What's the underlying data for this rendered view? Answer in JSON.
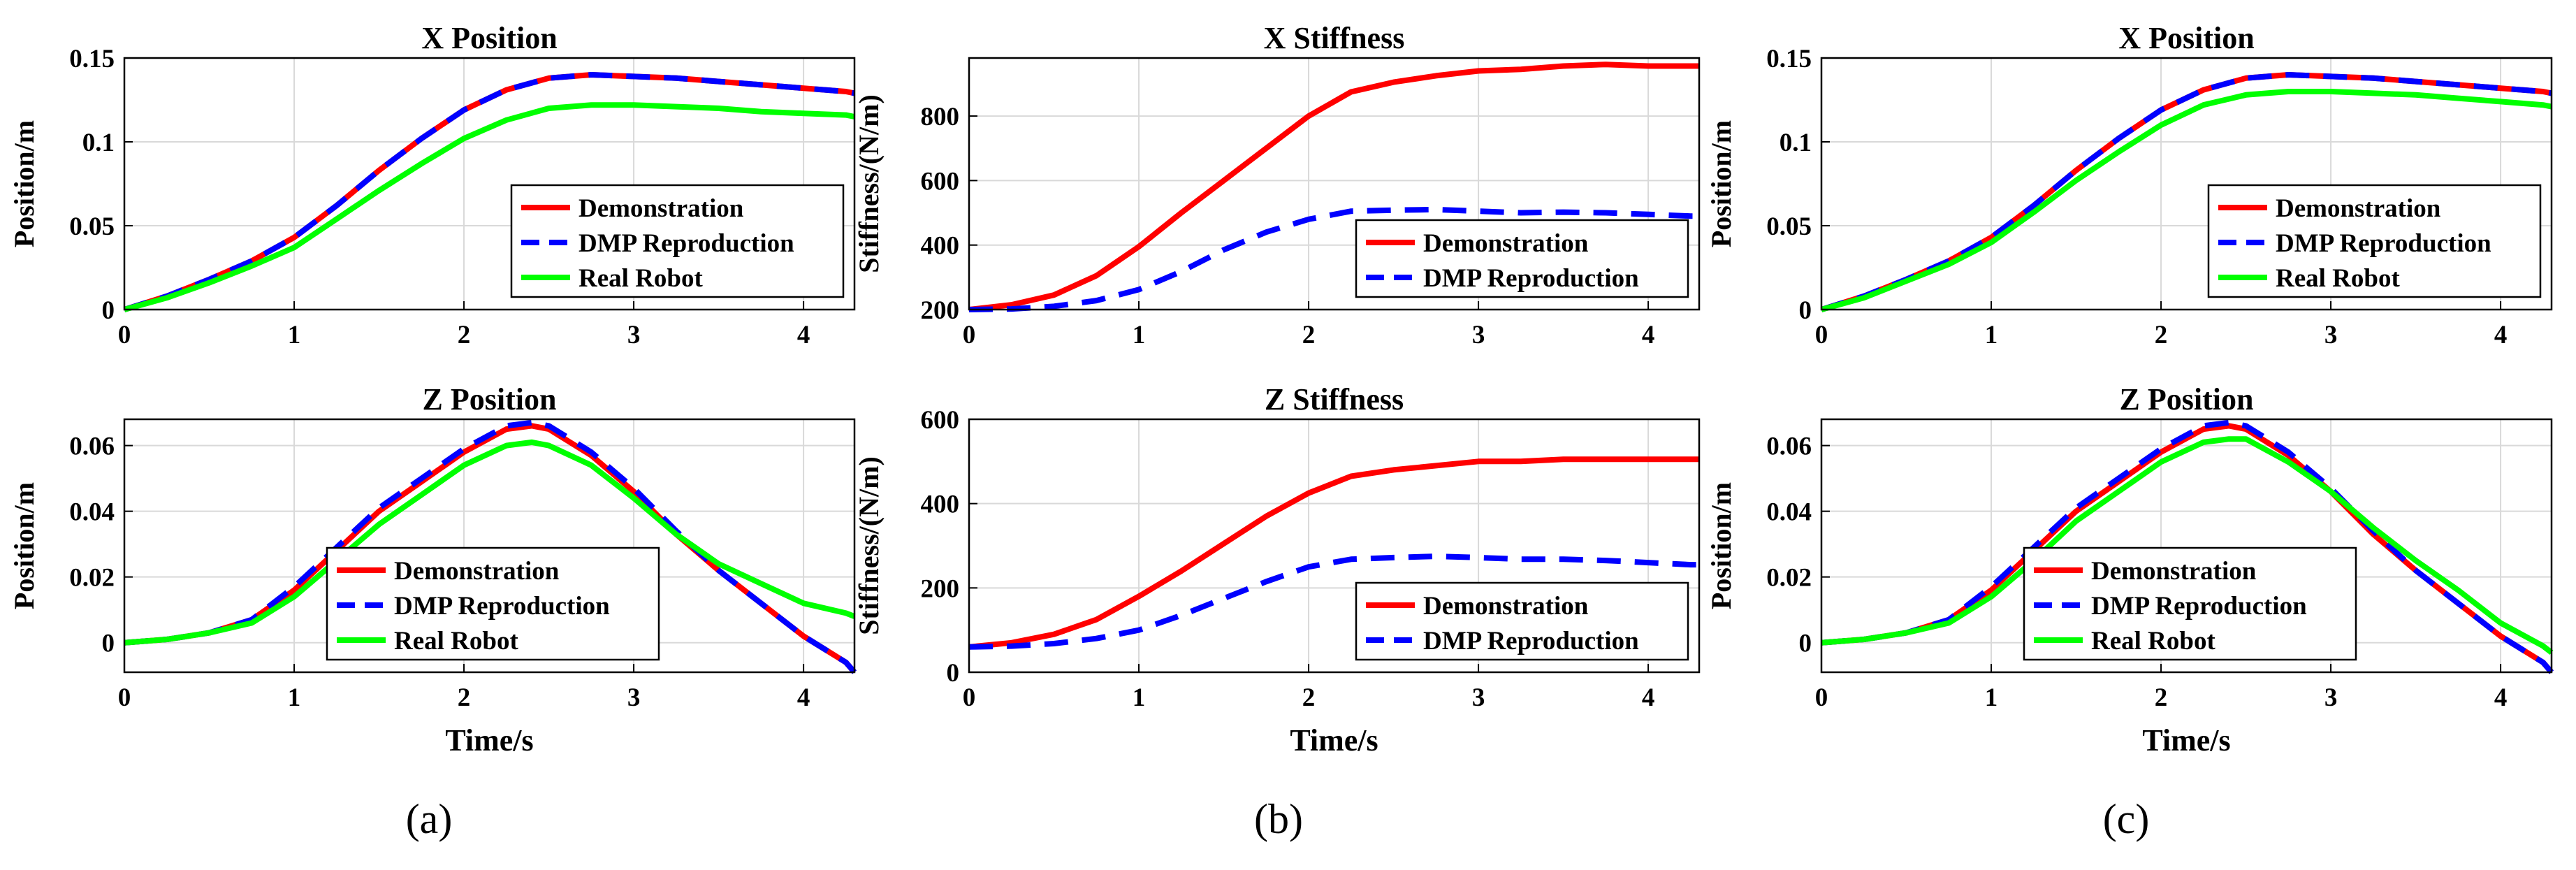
{
  "colors": {
    "Demonstration": "#ff0000",
    "DMP Reproduction": "#0000ff",
    "Real Robot": "#00ff00",
    "grid": "#d9d9d9"
  },
  "captions": [
    "(a)",
    "(b)",
    "(c)"
  ],
  "chart_data": [
    {
      "type": "line",
      "title": "X Position",
      "xlabel": "",
      "ylabel": "Position/m",
      "xlim": [
        0,
        4.3
      ],
      "ylim": [
        0,
        0.15
      ],
      "xticks": [
        "0",
        "1",
        "2",
        "3",
        "4"
      ],
      "yticks": [
        "0",
        "0.05",
        "0.1",
        "0.15"
      ],
      "ytick_values": [
        0,
        0.05,
        0.1,
        0.15
      ],
      "grid": true,
      "legend": "bottom-right",
      "x": [
        0,
        0.25,
        0.5,
        0.75,
        1,
        1.25,
        1.5,
        1.75,
        2,
        2.25,
        2.5,
        2.75,
        3,
        3.25,
        3.5,
        3.75,
        4,
        4.25,
        4.3
      ],
      "series": [
        {
          "name": "Demonstration",
          "style": "solid",
          "values": [
            0,
            0.008,
            0.018,
            0.029,
            0.043,
            0.062,
            0.083,
            0.102,
            0.119,
            0.131,
            0.138,
            0.14,
            0.139,
            0.138,
            0.136,
            0.134,
            0.132,
            0.13,
            0.129
          ]
        },
        {
          "name": "DMP Reproduction",
          "style": "dashed",
          "values": [
            0,
            0.008,
            0.018,
            0.029,
            0.043,
            0.062,
            0.083,
            0.102,
            0.119,
            0.131,
            0.138,
            0.14,
            0.139,
            0.138,
            0.136,
            0.134,
            0.132,
            0.13,
            0.129
          ]
        },
        {
          "name": "Real Robot",
          "style": "solid",
          "values": [
            0,
            0.007,
            0.016,
            0.026,
            0.037,
            0.054,
            0.071,
            0.087,
            0.102,
            0.113,
            0.12,
            0.122,
            0.122,
            0.121,
            0.12,
            0.118,
            0.117,
            0.116,
            0.115
          ]
        }
      ]
    },
    {
      "type": "line",
      "title": "X Stiffness",
      "xlabel": "",
      "ylabel": "Stiffness/(N/m)",
      "xlim": [
        0,
        4.3
      ],
      "ylim": [
        200,
        980
      ],
      "xticks": [
        "0",
        "1",
        "2",
        "3",
        "4"
      ],
      "yticks": [
        "200",
        "400",
        "600",
        "800"
      ],
      "ytick_values": [
        200,
        400,
        600,
        800
      ],
      "grid": true,
      "legend": "bottom-right",
      "x": [
        0,
        0.25,
        0.5,
        0.75,
        1,
        1.25,
        1.5,
        1.75,
        2,
        2.25,
        2.5,
        2.75,
        3,
        3.25,
        3.5,
        3.75,
        4,
        4.25,
        4.3
      ],
      "series": [
        {
          "name": "Demonstration",
          "style": "solid",
          "values": [
            200,
            215,
            245,
            305,
            395,
            500,
            600,
            700,
            800,
            875,
            905,
            925,
            940,
            945,
            955,
            960,
            955,
            955,
            955
          ]
        },
        {
          "name": "DMP Reproduction",
          "style": "dashed",
          "values": [
            200,
            202,
            210,
            228,
            262,
            318,
            385,
            440,
            480,
            505,
            508,
            510,
            505,
            500,
            502,
            500,
            495,
            490,
            490
          ]
        }
      ]
    },
    {
      "type": "line",
      "title": "X Position",
      "xlabel": "",
      "ylabel": "Position/m",
      "xlim": [
        0,
        4.3
      ],
      "ylim": [
        0,
        0.15
      ],
      "xticks": [
        "0",
        "1",
        "2",
        "3",
        "4"
      ],
      "yticks": [
        "0",
        "0.05",
        "0.1",
        "0.15"
      ],
      "ytick_values": [
        0,
        0.05,
        0.1,
        0.15
      ],
      "grid": true,
      "legend": "bottom-right",
      "x": [
        0,
        0.25,
        0.5,
        0.75,
        1,
        1.25,
        1.5,
        1.75,
        2,
        2.25,
        2.5,
        2.75,
        3,
        3.25,
        3.5,
        3.75,
        4,
        4.25,
        4.3
      ],
      "series": [
        {
          "name": "Demonstration",
          "style": "solid",
          "values": [
            0,
            0.008,
            0.018,
            0.029,
            0.043,
            0.062,
            0.083,
            0.102,
            0.119,
            0.131,
            0.138,
            0.14,
            0.139,
            0.138,
            0.136,
            0.134,
            0.132,
            0.13,
            0.129
          ]
        },
        {
          "name": "DMP Reproduction",
          "style": "dashed",
          "values": [
            0,
            0.008,
            0.018,
            0.029,
            0.043,
            0.062,
            0.083,
            0.102,
            0.119,
            0.131,
            0.138,
            0.14,
            0.139,
            0.138,
            0.136,
            0.134,
            0.132,
            0.13,
            0.129
          ]
        },
        {
          "name": "Real Robot",
          "style": "solid",
          "values": [
            0,
            0.007,
            0.017,
            0.027,
            0.04,
            0.058,
            0.077,
            0.094,
            0.11,
            0.122,
            0.128,
            0.13,
            0.13,
            0.129,
            0.128,
            0.126,
            0.124,
            0.122,
            0.121
          ]
        }
      ]
    },
    {
      "type": "line",
      "title": "Z Position",
      "xlabel": "Time/s",
      "ylabel": "Position/m",
      "xlim": [
        0,
        4.3
      ],
      "ylim": [
        -0.009,
        0.068
      ],
      "xticks": [
        "0",
        "1",
        "2",
        "3",
        "4"
      ],
      "yticks": [
        "0",
        "0.02",
        "0.04",
        "0.06"
      ],
      "ytick_values": [
        0,
        0.02,
        0.04,
        0.06
      ],
      "grid": true,
      "legend": "bottom-center",
      "x": [
        0,
        0.25,
        0.5,
        0.75,
        1,
        1.25,
        1.5,
        1.75,
        2,
        2.25,
        2.4,
        2.5,
        2.75,
        3,
        3.25,
        3.5,
        3.75,
        4,
        4.25,
        4.3
      ],
      "series": [
        {
          "name": "Demonstration",
          "style": "solid",
          "values": [
            0,
            0.001,
            0.003,
            0.007,
            0.016,
            0.028,
            0.04,
            0.049,
            0.058,
            0.065,
            0.066,
            0.065,
            0.057,
            0.046,
            0.033,
            0.022,
            0.012,
            0.002,
            -0.006,
            -0.009
          ]
        },
        {
          "name": "DMP Reproduction",
          "style": "dashed",
          "values": [
            0,
            0.001,
            0.003,
            0.007,
            0.017,
            0.029,
            0.041,
            0.05,
            0.059,
            0.066,
            0.067,
            0.066,
            0.058,
            0.047,
            0.034,
            0.022,
            0.012,
            0.002,
            -0.006,
            -0.009
          ]
        },
        {
          "name": "Real Robot",
          "style": "solid",
          "values": [
            0,
            0.001,
            0.003,
            0.006,
            0.014,
            0.025,
            0.036,
            0.045,
            0.054,
            0.06,
            0.061,
            0.06,
            0.054,
            0.044,
            0.033,
            0.024,
            0.018,
            0.012,
            0.009,
            0.008
          ]
        }
      ]
    },
    {
      "type": "line",
      "title": "Z Stiffness",
      "xlabel": "Time/s",
      "ylabel": "Stiffness/(N/m)",
      "xlim": [
        0,
        4.3
      ],
      "ylim": [
        0,
        600
      ],
      "xticks": [
        "0",
        "1",
        "2",
        "3",
        "4"
      ],
      "yticks": [
        "0",
        "200",
        "400",
        "600"
      ],
      "ytick_values": [
        0,
        200,
        400,
        600
      ],
      "grid": true,
      "legend": "bottom-right",
      "x": [
        0,
        0.25,
        0.5,
        0.75,
        1,
        1.25,
        1.5,
        1.75,
        2,
        2.25,
        2.5,
        2.75,
        3,
        3.25,
        3.5,
        3.75,
        4,
        4.25,
        4.3
      ],
      "series": [
        {
          "name": "Demonstration",
          "style": "solid",
          "values": [
            60,
            70,
            90,
            125,
            180,
            240,
            305,
            370,
            425,
            465,
            480,
            490,
            500,
            500,
            505,
            505,
            505,
            505,
            505
          ]
        },
        {
          "name": "DMP Reproduction",
          "style": "dashed",
          "values": [
            60,
            62,
            68,
            80,
            100,
            135,
            175,
            215,
            250,
            268,
            272,
            275,
            272,
            268,
            268,
            265,
            260,
            255,
            255
          ]
        }
      ]
    },
    {
      "type": "line",
      "title": "Z Position",
      "xlabel": "Time/s",
      "ylabel": "Position/m",
      "xlim": [
        0,
        4.3
      ],
      "ylim": [
        -0.009,
        0.068
      ],
      "xticks": [
        "0",
        "1",
        "2",
        "3",
        "4"
      ],
      "yticks": [
        "0",
        "0.02",
        "0.04",
        "0.06"
      ],
      "ytick_values": [
        0,
        0.02,
        0.04,
        0.06
      ],
      "grid": true,
      "legend": "bottom-center",
      "x": [
        0,
        0.25,
        0.5,
        0.75,
        1,
        1.25,
        1.5,
        1.75,
        2,
        2.25,
        2.4,
        2.5,
        2.75,
        3,
        3.25,
        3.5,
        3.75,
        4,
        4.25,
        4.3
      ],
      "series": [
        {
          "name": "Demonstration",
          "style": "solid",
          "values": [
            0,
            0.001,
            0.003,
            0.007,
            0.016,
            0.028,
            0.04,
            0.049,
            0.058,
            0.065,
            0.066,
            0.065,
            0.057,
            0.046,
            0.033,
            0.022,
            0.012,
            0.002,
            -0.006,
            -0.009
          ]
        },
        {
          "name": "DMP Reproduction",
          "style": "dashed",
          "values": [
            0,
            0.001,
            0.003,
            0.007,
            0.017,
            0.029,
            0.041,
            0.05,
            0.059,
            0.066,
            0.067,
            0.066,
            0.058,
            0.047,
            0.034,
            0.022,
            0.012,
            0.002,
            -0.006,
            -0.009
          ]
        },
        {
          "name": "Real Robot",
          "style": "solid",
          "values": [
            0,
            0.001,
            0.003,
            0.006,
            0.014,
            0.025,
            0.037,
            0.046,
            0.055,
            0.061,
            0.062,
            0.062,
            0.055,
            0.046,
            0.035,
            0.025,
            0.016,
            0.006,
            -0.001,
            -0.003
          ]
        }
      ]
    }
  ]
}
